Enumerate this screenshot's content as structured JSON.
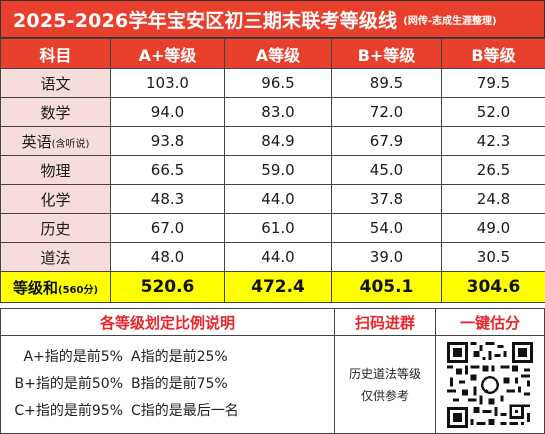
{
  "title": {
    "main": "2025-2026学年宝安区初三期末联考等级线",
    "note": "(网传-志成生涯整理)"
  },
  "table": {
    "headers": [
      "科目",
      "A+等级",
      "A等级",
      "B+等级",
      "B等级"
    ],
    "rows": [
      {
        "subject": "语文",
        "subject_note": "",
        "values": [
          "103.0",
          "96.5",
          "89.5",
          "79.5"
        ]
      },
      {
        "subject": "数学",
        "subject_note": "",
        "values": [
          "94.0",
          "83.0",
          "72.0",
          "52.0"
        ]
      },
      {
        "subject": "英语",
        "subject_note": "(含听说)",
        "values": [
          "93.8",
          "84.9",
          "67.9",
          "42.3"
        ]
      },
      {
        "subject": "物理",
        "subject_note": "",
        "values": [
          "66.5",
          "59.0",
          "45.0",
          "26.5"
        ]
      },
      {
        "subject": "化学",
        "subject_note": "",
        "values": [
          "48.3",
          "44.0",
          "37.8",
          "24.8"
        ]
      },
      {
        "subject": "历史",
        "subject_note": "",
        "values": [
          "67.0",
          "61.0",
          "54.0",
          "49.0"
        ]
      },
      {
        "subject": "道法",
        "subject_note": "",
        "values": [
          "48.0",
          "44.0",
          "39.0",
          "30.5"
        ]
      }
    ],
    "total": {
      "label": "等级和",
      "label_note": "(560分)",
      "values": [
        "520.6",
        "472.4",
        "405.1",
        "304.6"
      ]
    }
  },
  "bottom": {
    "explain_title": "各等级划定比例说明",
    "scan_title": "扫码进群",
    "estimate_title": "一键估分",
    "explain_lines": [
      [
        "A+指的是前5%",
        "A指的是前25%"
      ],
      [
        "B+指的是前50%",
        "B指的是前75%"
      ],
      [
        "C+指的是前95%",
        "C指的是最后一名"
      ]
    ],
    "history_note_line1": "历史道法等级",
    "history_note_line2": "仅供参考",
    "qr_icon": "qr-code-icon"
  },
  "colors": {
    "header_red": "#e8402c",
    "subject_pink": "#f7dcdc",
    "total_yellow": "#ffff00",
    "accent_red_text": "#e8252a"
  }
}
